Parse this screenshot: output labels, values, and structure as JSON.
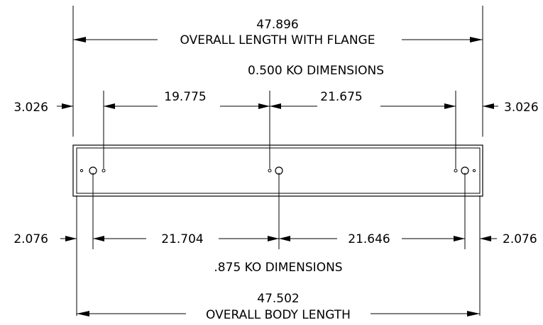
{
  "dimensions": {
    "overall_flange": {
      "value": "47.896",
      "label": "OVERALL LENGTH WITH FLANGE"
    },
    "ko_500": {
      "title": "0.500 KO DIMENSIONS",
      "left_offset": "3.026",
      "left_span": "19.775",
      "right_span": "21.675",
      "right_offset": "3.026"
    },
    "ko_875": {
      "title": ".875 KO DIMENSIONS",
      "left_offset": "2.076",
      "left_span": "21.704",
      "right_span": "21.646",
      "right_offset": "2.076"
    },
    "overall_body": {
      "value": "47.502",
      "label": "OVERALL BODY LENGTH"
    }
  }
}
